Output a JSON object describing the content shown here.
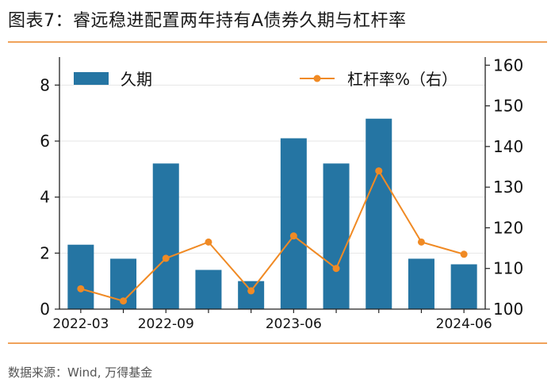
{
  "title": "图表7：睿远稳进配置两年持有A债券久期与杠杆率",
  "source": "数据来源：Wind, 万得基金",
  "colors": {
    "bar": "#2575a3",
    "line": "#f08a24",
    "accent_rule": "#f0a25a",
    "grid": "#e6e6e6"
  },
  "chart_data": {
    "type": "bar",
    "title": "",
    "xlabel": "",
    "ylabel": "",
    "x_tick_labels": [
      {
        "index": 0,
        "label": "2022-03"
      },
      {
        "index": 2,
        "label": "2022-09"
      },
      {
        "index": 5,
        "label": "2023-06"
      },
      {
        "index": 9,
        "label": "2024-06"
      }
    ],
    "categories": [
      "2022-03",
      "2022-06",
      "2022-09",
      "2022-12",
      "2023-03",
      "2023-06",
      "2023-09",
      "2023-12",
      "2024-03",
      "2024-06"
    ],
    "series": [
      {
        "name": "久期",
        "type": "bar",
        "axis": "left",
        "values": [
          2.3,
          1.8,
          5.2,
          1.4,
          1.0,
          6.1,
          5.2,
          6.8,
          1.8,
          1.6
        ]
      },
      {
        "name": "杠杆率%（右）",
        "type": "line",
        "axis": "right",
        "values": [
          105,
          102,
          112.5,
          116.5,
          104.5,
          118,
          110,
          134,
          116.5,
          113.5
        ]
      }
    ],
    "ylim_left": [
      0,
      9
    ],
    "yticks_left": [
      0,
      2,
      4,
      6,
      8
    ],
    "ylim_right": [
      100,
      162
    ],
    "yticks_right": [
      100,
      110,
      120,
      130,
      140,
      150,
      160
    ],
    "legend_position": "top"
  }
}
